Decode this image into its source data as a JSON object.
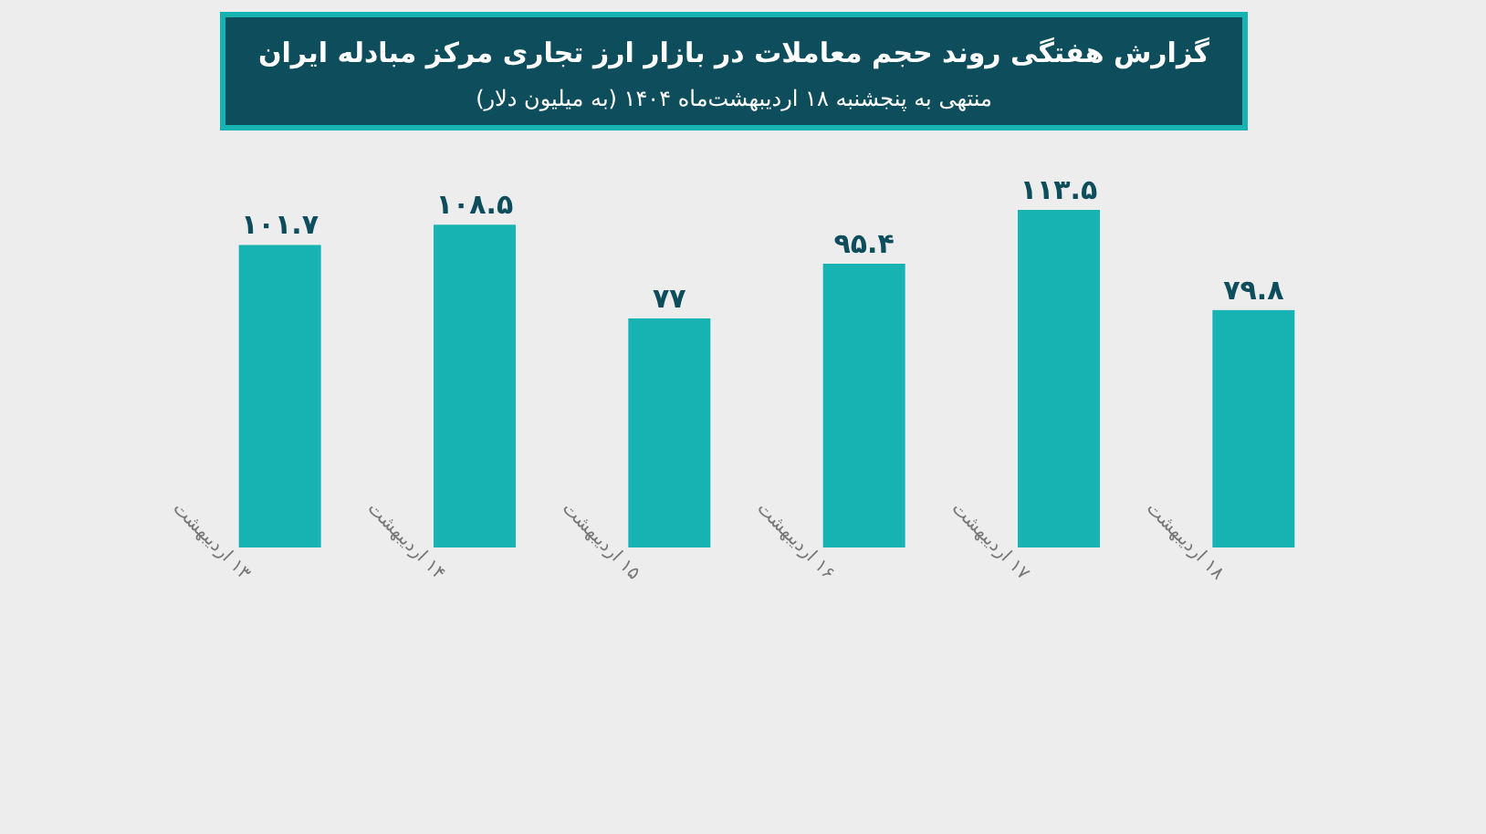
{
  "chart_data": {
    "type": "bar",
    "title": "گزارش هفتگی روند حجم معاملات در بازار ارز تجاری مرکز مبادله ایران",
    "subtitle": "منتهی به پنجشنبه ۱۸ اردیبهشت‌ماه ۱۴۰۴ (به میلیون دلار)",
    "categories": [
      "۱۳ اردیبهشت",
      "۱۴ اردیبهشت",
      "۱۵ اردیبهشت",
      "۱۶ اردیبهشت",
      "۱۷ اردیبهشت",
      "۱۸ اردیبهشت"
    ],
    "values": [
      101.7,
      108.5,
      77,
      95.4,
      113.5,
      79.8
    ],
    "value_labels": [
      "۱۰۱.۷",
      "۱۰۸.۵",
      "۷۷",
      "۹۵.۴",
      "۱۱۳.۵",
      "۷۹.۸"
    ],
    "color": "#17b3b3"
  }
}
